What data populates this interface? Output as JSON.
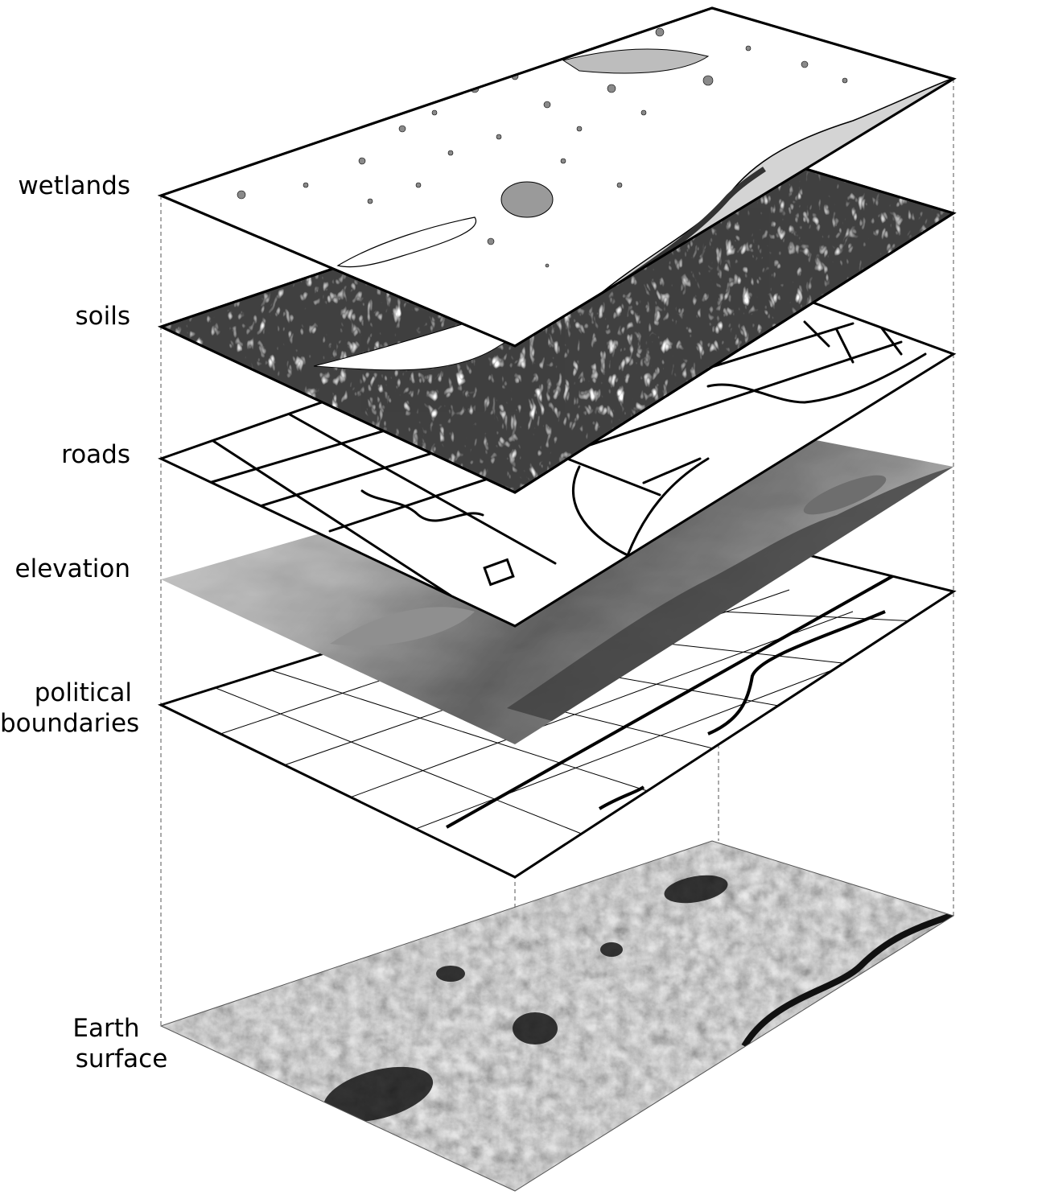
{
  "figure": {
    "layers": [
      {
        "id": "wetlands",
        "lines": [
          "wetlands"
        ],
        "style": "vector-polygons"
      },
      {
        "id": "soils",
        "lines": [
          "soils"
        ],
        "style": "dense-contours"
      },
      {
        "id": "roads",
        "lines": [
          "roads"
        ],
        "style": "line-network"
      },
      {
        "id": "elevation",
        "lines": [
          "elevation"
        ],
        "style": "shaded-relief"
      },
      {
        "id": "political-boundaries",
        "lines": [
          "political",
          "boundaries"
        ],
        "style": "grid-lines"
      },
      {
        "id": "earth-surface",
        "lines": [
          "Earth",
          "surface"
        ],
        "style": "aerial-photo"
      }
    ],
    "colors": {
      "outline": "#000000",
      "guide": "#555555",
      "wetland_fill": "#9a9a9a",
      "river_fill": "#d4d4d4",
      "relief_light": "#dcdcdc",
      "relief_dark": "#3a3a3a",
      "photo_light": "#e8e8e8",
      "photo_dark": "#101010"
    }
  }
}
